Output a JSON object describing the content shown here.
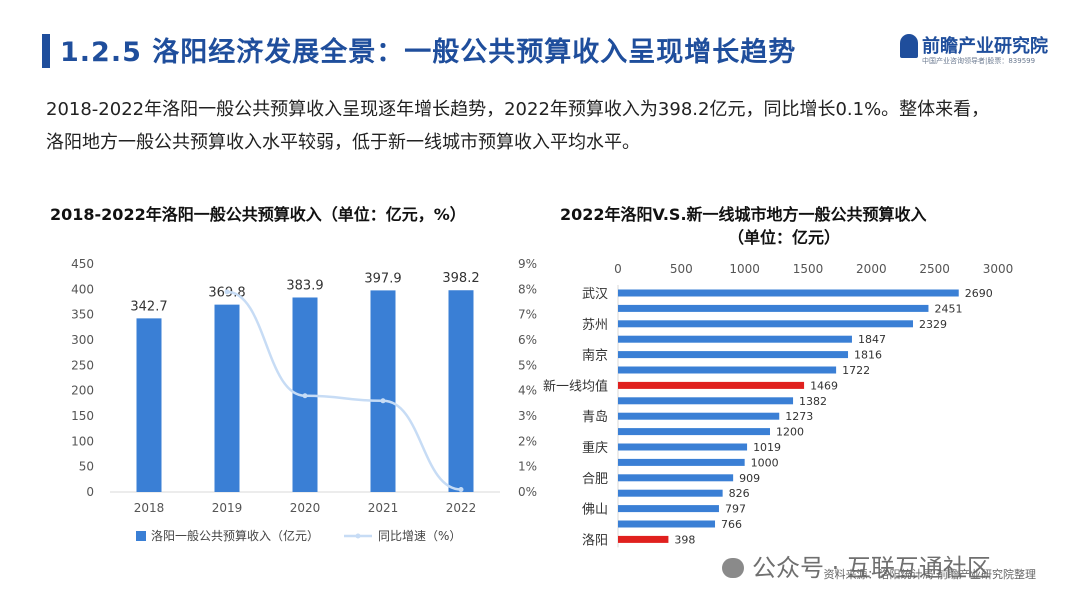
{
  "header": {
    "title": "1.2.5 洛阳经济发展全景：一般公共预算收入呈现增长趋势",
    "logo_text": "前瞻产业研究院",
    "logo_subtext": "中国产业咨询领导者|股票：839599"
  },
  "description": "2018-2022年洛阳一般公共预算收入呈现逐年增长趋势，2022年预算收入为398.2亿元，同比增长0.1%。整体来看，洛阳地方一般公共预算收入水平较弱，低于新一线城市预算收入平均水平。",
  "footer": {
    "source": "资料来源：洛阳统计局 前瞻产业研究院整理",
    "watermark": "公众号 · 互联互通社区"
  },
  "colors": {
    "brand": "#1f4e9c",
    "bar": "#3a7fd5",
    "line": "#c7dcf5",
    "highlight": "#e0201e"
  },
  "chart_data": [
    {
      "type": "bar",
      "title": "2018-2022年洛阳一般公共预算收入（单位：亿元，%）",
      "categories": [
        "2018",
        "2019",
        "2020",
        "2021",
        "2022"
      ],
      "series": [
        {
          "name": "洛阳一般公共预算收入（亿元）",
          "type": "bar",
          "axis": "left",
          "values": [
            342.7,
            369.8,
            383.9,
            397.9,
            398.2
          ],
          "labels": [
            "342.7",
            "369.8",
            "383.9",
            "397.9",
            "398.2"
          ]
        },
        {
          "name": "同比增速（%）",
          "type": "line",
          "axis": "right",
          "values": [
            null,
            7.9,
            3.8,
            3.6,
            0.1
          ]
        }
      ],
      "ylim": [
        0,
        450
      ],
      "yticks": [
        0,
        50,
        100,
        150,
        200,
        250,
        300,
        350,
        400,
        450
      ],
      "y2lim": [
        0,
        9
      ],
      "y2ticks": [
        "0%",
        "1%",
        "2%",
        "3%",
        "4%",
        "5%",
        "6%",
        "7%",
        "8%",
        "9%"
      ],
      "legend": "bottom"
    },
    {
      "type": "bar",
      "orientation": "horizontal",
      "title_line1": "2022年洛阳V.S.新一线城市地方一般公共预算收入",
      "title_line2": "（单位：亿元）",
      "xlim": [
        0,
        3000
      ],
      "xticks": [
        "0",
        "500",
        "1000",
        "1500",
        "2000",
        "2500",
        "3000"
      ],
      "categories": [
        "武汉",
        "",
        "苏州",
        "",
        "南京",
        "",
        "新一线均值",
        "",
        "青岛",
        "",
        "重庆",
        "",
        "合肥",
        "",
        "佛山",
        "",
        "洛阳"
      ],
      "values": [
        2690,
        2451,
        2329,
        1847,
        1816,
        1722,
        1469,
        1382,
        1273,
        1200,
        1019,
        1000,
        909,
        826,
        797,
        766,
        398
      ],
      "labels": [
        "2690",
        "2451",
        "2329",
        "1847",
        "1816",
        "1722",
        "1469",
        "1382",
        "1273",
        "1200",
        "1019",
        "1000",
        "909",
        "826",
        "797",
        "766",
        "398"
      ],
      "highlight": [
        "新一线均值",
        "洛阳"
      ]
    }
  ]
}
